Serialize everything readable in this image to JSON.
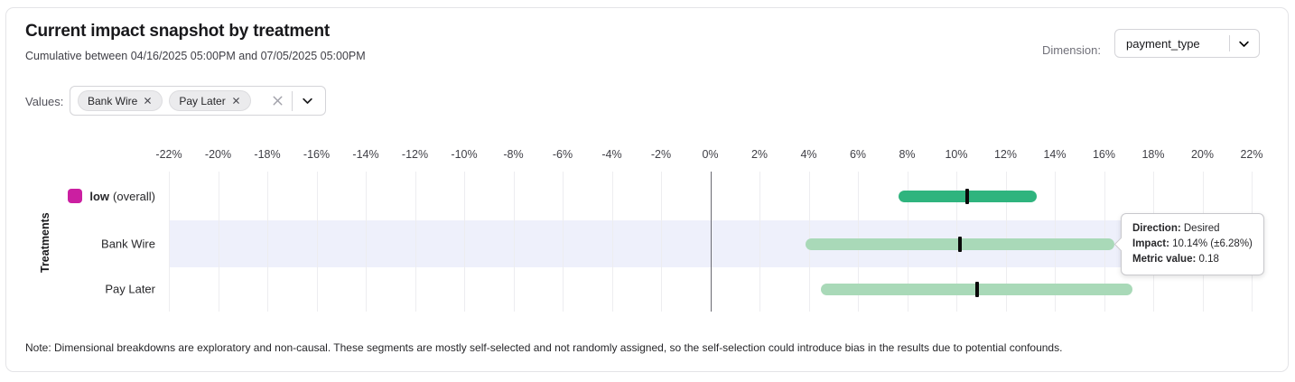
{
  "header": {
    "title": "Current impact snapshot by treatment",
    "subtitle": "Cumulative between 04/16/2025 05:00PM and 07/05/2025 05:00PM",
    "dimension_label": "Dimension:",
    "dimension_value": "payment_type"
  },
  "filters": {
    "values_label": "Values:",
    "chips": [
      "Bank Wire",
      "Pay Later"
    ]
  },
  "tooltip": {
    "rows": [
      {
        "label": "Direction:",
        "value": "Desired"
      },
      {
        "label": "Impact:",
        "value": "10.14% (±6.28%)"
      },
      {
        "label": "Metric value:",
        "value": "0.18"
      }
    ]
  },
  "note": "Note: Dimensional breakdowns are exploratory and non-causal. These segments are mostly self-selected and not randomly assigned, so the self-selection could introduce bias in the results due to potential confounds.",
  "colors": {
    "overall_bar": "#2fb47e",
    "segment_bar": "#a9d9b8",
    "legend_swatch": "#cb1fa1",
    "row_highlight": "#eef0fb",
    "point_marker": "#0a0a0a",
    "zero_line": "#6b6b72"
  },
  "chart_data": {
    "type": "bar",
    "variant": "horizontal-interval-with-point-estimate",
    "title": "Current impact snapshot by treatment",
    "xlabel": "",
    "ylabel": "Treatments",
    "xlim": [
      -22,
      22
    ],
    "grid": true,
    "x_ticks": [
      "-22%",
      "-20%",
      "-18%",
      "-16%",
      "-14%",
      "-12%",
      "-10%",
      "-8%",
      "-6%",
      "-4%",
      "-2%",
      "0%",
      "2%",
      "4%",
      "6%",
      "8%",
      "10%",
      "12%",
      "14%",
      "16%",
      "18%",
      "20%",
      "22%"
    ],
    "rows": [
      {
        "label": "low",
        "label_note": "(overall)",
        "impact_pct": 10.43,
        "ci_low_pct": 7.65,
        "ci_high_pct": 13.25,
        "bar_color": "#2fb47e",
        "swatch_color": "#cb1fa1",
        "highlighted": false
      },
      {
        "label": "Bank Wire",
        "label_note": "",
        "impact_pct": 10.14,
        "ci_low_pct": 3.86,
        "ci_high_pct": 16.42,
        "bar_color": "#a9d9b8",
        "highlighted": true
      },
      {
        "label": "Pay Later",
        "label_note": "",
        "impact_pct": 10.83,
        "ci_low_pct": 4.51,
        "ci_high_pct": 17.15,
        "bar_color": "#a9d9b8",
        "highlighted": false
      }
    ]
  }
}
